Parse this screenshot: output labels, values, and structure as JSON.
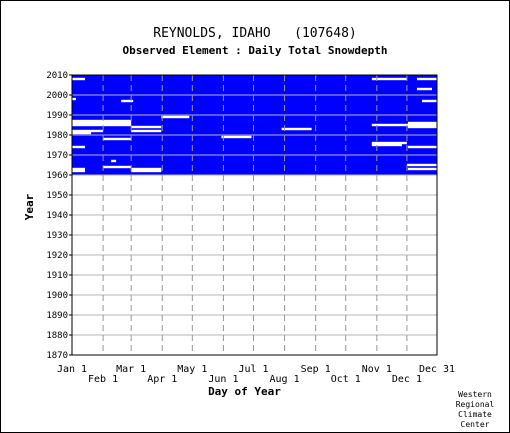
{
  "chart_data": {
    "type": "heatmap",
    "title": "REYNOLDS, IDAHO   (107648)",
    "subtitle": "Observed Element : Daily Total Snowdepth",
    "xlabel": "Day of Year",
    "ylabel": "Year",
    "x_ticks_top": [
      "Jan 1",
      "Mar 1",
      "May 1",
      "Jul 1",
      "Sep 1",
      "Nov 1",
      "Dec 31"
    ],
    "x_ticks_bottom": [
      "Feb 1",
      "Apr 1",
      "Jun 1",
      "Aug 1",
      "Oct 1",
      "Dec 1"
    ],
    "x_tick_days": [
      1,
      32,
      60,
      91,
      121,
      152,
      182,
      213,
      244,
      274,
      305,
      335,
      365
    ],
    "y_ticks": [
      2010,
      2000,
      1990,
      1980,
      1970,
      1960,
      1950,
      1940,
      1930,
      1920,
      1910,
      1900,
      1890,
      1880,
      1870
    ],
    "ylim": [
      1870,
      2010
    ],
    "xlim": [
      1,
      365
    ],
    "grid": true,
    "data_color": "#0000ff",
    "record_years": [
      1961,
      2010
    ],
    "description_of_values": "blue = snowdepth observation present for that day/year; white = missing",
    "missing_segments": [
      {
        "year": 2008,
        "start_day": 1,
        "end_day": 14
      },
      {
        "year": 2008,
        "start_day": 300,
        "end_day": 335
      },
      {
        "year": 2008,
        "start_day": 345,
        "end_day": 365
      },
      {
        "year": 2003,
        "start_day": 345,
        "end_day": 360
      },
      {
        "year": 1998,
        "start_day": 1,
        "end_day": 5
      },
      {
        "year": 1997,
        "start_day": 50,
        "end_day": 62
      },
      {
        "year": 1997,
        "start_day": 350,
        "end_day": 365
      },
      {
        "year": 1989,
        "start_day": 90,
        "end_day": 118
      },
      {
        "year": 1987,
        "start_day": 1,
        "end_day": 60
      },
      {
        "year": 1986,
        "start_day": 1,
        "end_day": 60
      },
      {
        "year": 1986,
        "start_day": 336,
        "end_day": 365
      },
      {
        "year": 1985,
        "start_day": 1,
        "end_day": 60
      },
      {
        "year": 1985,
        "start_day": 300,
        "end_day": 340
      },
      {
        "year": 1985,
        "start_day": 336,
        "end_day": 365
      },
      {
        "year": 1984,
        "start_day": 60,
        "end_day": 90
      },
      {
        "year": 1984,
        "start_day": 336,
        "end_day": 365
      },
      {
        "year": 1983,
        "start_day": 210,
        "end_day": 240
      },
      {
        "year": 1982,
        "start_day": 1,
        "end_day": 32
      },
      {
        "year": 1982,
        "start_day": 60,
        "end_day": 90
      },
      {
        "year": 1981,
        "start_day": 1,
        "end_day": 20
      },
      {
        "year": 1979,
        "start_day": 150,
        "end_day": 180
      },
      {
        "year": 1978,
        "start_day": 32,
        "end_day": 60
      },
      {
        "year": 1976,
        "start_day": 300,
        "end_day": 335
      },
      {
        "year": 1975,
        "start_day": 300,
        "end_day": 330
      },
      {
        "year": 1974,
        "start_day": 1,
        "end_day": 14
      },
      {
        "year": 1974,
        "start_day": 336,
        "end_day": 365
      },
      {
        "year": 1967,
        "start_day": 40,
        "end_day": 45
      },
      {
        "year": 1965,
        "start_day": 335,
        "end_day": 365
      },
      {
        "year": 1964,
        "start_day": 32,
        "end_day": 60
      },
      {
        "year": 1963,
        "start_day": 1,
        "end_day": 14
      },
      {
        "year": 1963,
        "start_day": 60,
        "end_day": 90
      },
      {
        "year": 1963,
        "start_day": 336,
        "end_day": 365
      },
      {
        "year": 1962,
        "start_day": 1,
        "end_day": 14
      },
      {
        "year": 1962,
        "start_day": 60,
        "end_day": 90
      }
    ]
  },
  "credit": {
    "line1": "Western",
    "line2": "Regional",
    "line3": "Climate",
    "line4": "Center"
  }
}
